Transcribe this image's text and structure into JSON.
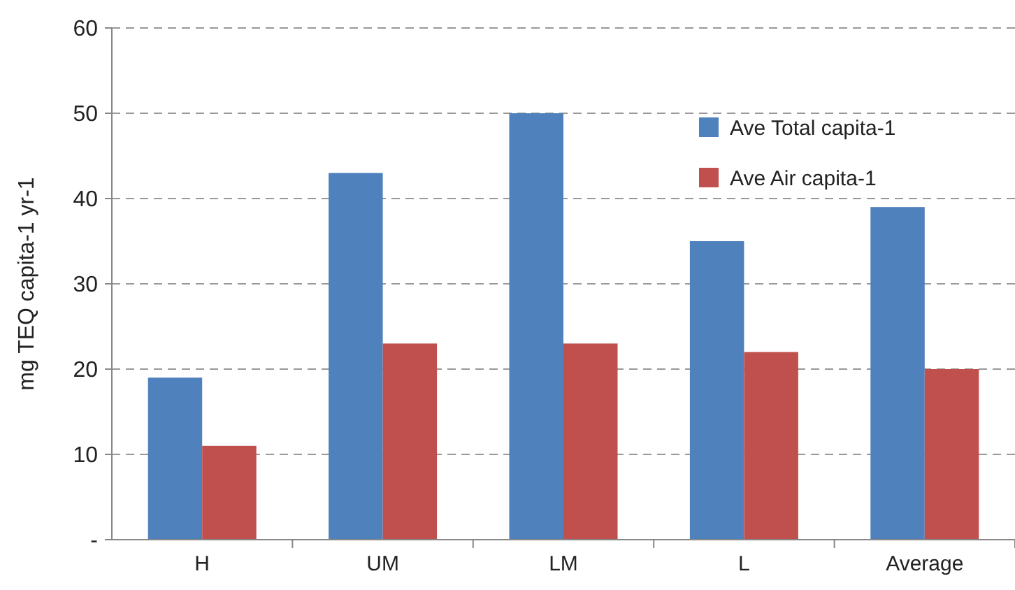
{
  "chart_data": {
    "type": "bar",
    "ylabel": "mg TEQ capita-1 yr-1",
    "categories": [
      "H",
      "UM",
      "LM",
      "L",
      "Average"
    ],
    "series": [
      {
        "name": "Ave Total capita-1",
        "color": "#4f81bd",
        "values": [
          19,
          43,
          50,
          35,
          39
        ]
      },
      {
        "name": "Ave Air capita-1",
        "color": "#c0504d",
        "values": [
          11,
          23,
          23,
          22,
          20
        ]
      }
    ],
    "ylim": [
      0,
      60
    ],
    "yticks": [
      {
        "value": 0,
        "label": "-"
      },
      10,
      20,
      30,
      40,
      50,
      60
    ],
    "grid": "y",
    "legend": "top right"
  }
}
